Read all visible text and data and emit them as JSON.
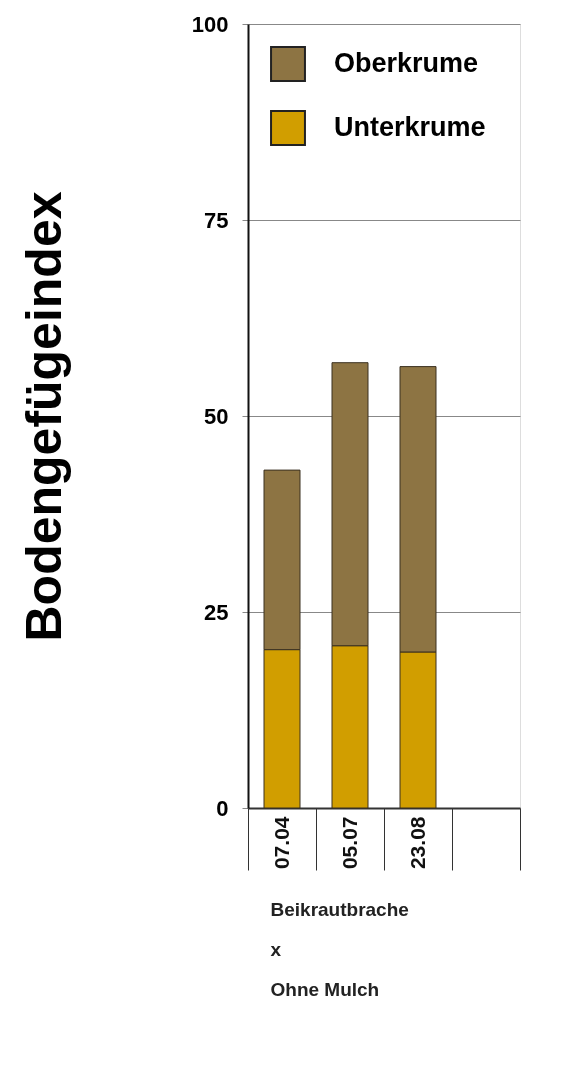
{
  "chart_data": {
    "type": "bar",
    "stacked": true,
    "ylabel": "Bodengefügeindex",
    "xlabel": "Beikrautbrache\nx\nOhne Mulch",
    "categories": [
      "07.04",
      "05.07",
      "23.08",
      null
    ],
    "series": [
      {
        "name": "Unterkrume",
        "color": "#d19e00",
        "values": [
          20.2,
          20.7,
          19.9,
          null
        ]
      },
      {
        "name": "Oberkrume",
        "color": "#8d7443",
        "values": [
          22.9,
          36.1,
          36.4,
          null
        ]
      }
    ],
    "ylim": [
      0,
      100
    ],
    "yticks": [
      0,
      25,
      50,
      75,
      100
    ],
    "grid": "y",
    "legend": "top left"
  }
}
